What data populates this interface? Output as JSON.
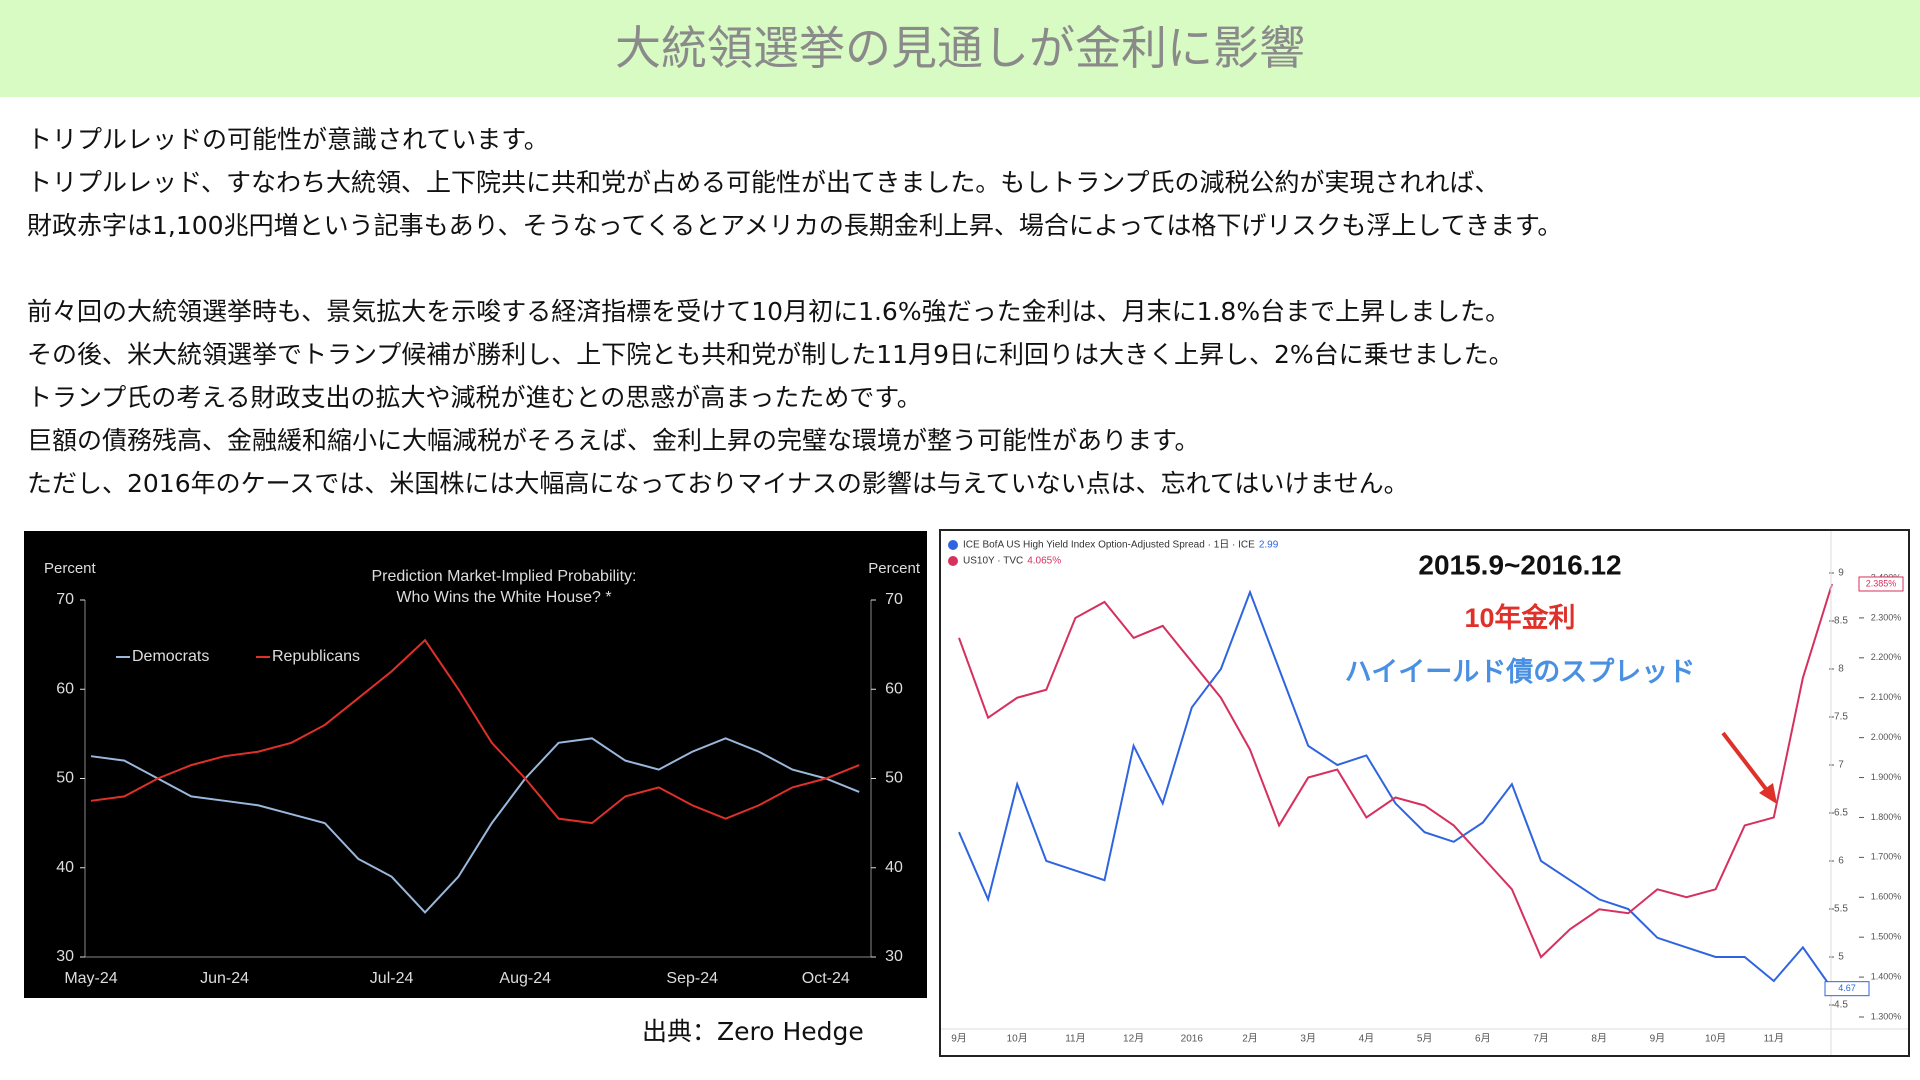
{
  "header": {
    "title": "大統領選挙の見通しが金利に影響"
  },
  "paragraphs": [
    "トリプルレッドの可能性が意識されています。",
    "トリプルレッド、すなわち大統領、上下院共に共和党が占める可能性が出てきました。もしトランプ氏の減税公約が実現されれば、",
    "財政赤字は1,100兆円増という記事もあり、そうなってくるとアメリカの長期金利上昇、場合によっては格下げリスクも浮上してきます。",
    null,
    "前々回の大統領選挙時も、景気拡大を示唆する経済指標を受けて10月初に1.6%強だった金利は、月末に1.8%台まで上昇しました。",
    "その後、米大統領選挙でトランプ候補が勝利し、上下院とも共和党が制した11月9日に利回りは大きく上昇し、2%台に乗せました。",
    "トランプ氏の考える財政支出の拡大や減税が進むとの思惑が高まったためです。",
    "巨額の債務残高、金融緩和縮小に大幅減税がそろえば、金利上昇の完璧な環境が整う可能性があります。",
    "ただし、2016年のケースでは、米国株には大幅高になっておりマイナスの影響は与えていない点は、忘れてはいけません。"
  ],
  "chart_data": [
    {
      "type": "line",
      "title": "Prediction Market-Implied Probability:",
      "subtitle": "Who Wins the White House? *",
      "y_label": "Percent",
      "y2_label": "Percent",
      "categories": [
        "May-24",
        null,
        null,
        null,
        "Jun-24",
        null,
        null,
        null,
        null,
        "Jul-24",
        null,
        null,
        null,
        "Aug-24",
        null,
        null,
        null,
        null,
        "Sep-24",
        null,
        null,
        null,
        "Oct-24",
        null
      ],
      "ylim": [
        30,
        70
      ],
      "yticks": [
        30,
        40,
        50,
        60,
        70
      ],
      "y2lim": [
        30,
        70
      ],
      "y2ticks": [
        30,
        40,
        50,
        60,
        70
      ],
      "series": [
        {
          "name": "Democrats",
          "color": "#9ab8dc",
          "values": [
            52.5,
            52,
            50,
            48,
            47.5,
            47,
            46,
            45,
            41,
            39,
            35,
            39,
            45,
            50,
            54,
            54.5,
            52,
            51,
            53,
            54.5,
            53,
            51,
            50,
            48.5
          ]
        },
        {
          "name": "Republicans",
          "color": "#e0302a",
          "values": [
            47.5,
            48,
            50,
            51.5,
            52.5,
            53,
            54,
            56,
            59,
            62,
            65.5,
            60,
            54,
            50,
            45.5,
            45,
            48,
            49,
            47,
            45.5,
            47,
            49,
            50,
            51.5
          ]
        }
      ]
    },
    {
      "type": "line",
      "annotations": [
        "2015.9~2016.12",
        "10年金利",
        "ハイイールド債のスプレッド"
      ],
      "categories": [
        "9月",
        null,
        "10月",
        null,
        "11月",
        null,
        "12月",
        null,
        "2016",
        null,
        "2月",
        null,
        "3月",
        null,
        "4月",
        null,
        "5月",
        null,
        "6月",
        null,
        "7月",
        null,
        "8月",
        null,
        "9月",
        null,
        "10月",
        null,
        "11月",
        null,
        null
      ],
      "ylim": [
        4.5,
        9
      ],
      "yticks": [
        4.5,
        5,
        5.5,
        6,
        6.5,
        7,
        7.5,
        8,
        8.5,
        9
      ],
      "y2lim": [
        1.3,
        2.4
      ],
      "y2ticks": [
        {
          "value": 1.3,
          "label": "1.300%"
        },
        {
          "value": 1.4,
          "label": "1.400%"
        },
        {
          "value": 1.5,
          "label": "1.500%"
        },
        {
          "value": 1.6,
          "label": "1.600%"
        },
        {
          "value": 1.7,
          "label": "1.700%"
        },
        {
          "value": 1.8,
          "label": "1.800%"
        },
        {
          "value": 1.9,
          "label": "1.900%"
        },
        {
          "value": 2.0,
          "label": "2.000%"
        },
        {
          "value": 2.1,
          "label": "2.100%"
        },
        {
          "value": 2.2,
          "label": "2.200%"
        },
        {
          "value": 2.3,
          "label": "2.300%"
        },
        {
          "value": 2.4,
          "label": "2.400%"
        }
      ],
      "series": [
        {
          "name": "ICE BofA US High Yield Index Option-Adjusted Spread · 1日 · ICE",
          "legend_value": "2.99",
          "color": "#2f64e0",
          "last_label": "4.67",
          "values": [
            6.3,
            5.6,
            6.8,
            6.0,
            5.9,
            5.8,
            7.2,
            6.6,
            7.6,
            8.0,
            8.8,
            8.0,
            7.2,
            7.0,
            7.1,
            6.6,
            6.3,
            6.2,
            6.4,
            6.8,
            6.0,
            5.8,
            5.6,
            5.5,
            5.2,
            5.1,
            5.0,
            5.0,
            4.75,
            5.1,
            4.67
          ]
        },
        {
          "name": "US10Y · TVC",
          "legend_value": "4.065%",
          "color": "#d6305e",
          "axis": "y2",
          "last_label": "2.385%",
          "values": [
            2.25,
            2.05,
            2.1,
            2.12,
            2.3,
            2.34,
            2.25,
            2.28,
            2.19,
            2.1,
            1.97,
            1.78,
            1.9,
            1.92,
            1.8,
            1.85,
            1.83,
            1.78,
            1.7,
            1.62,
            1.45,
            1.52,
            1.57,
            1.56,
            1.62,
            1.6,
            1.62,
            1.78,
            1.8,
            2.15,
            2.385
          ]
        }
      ]
    }
  ],
  "source": "出典：Zero Hedge"
}
